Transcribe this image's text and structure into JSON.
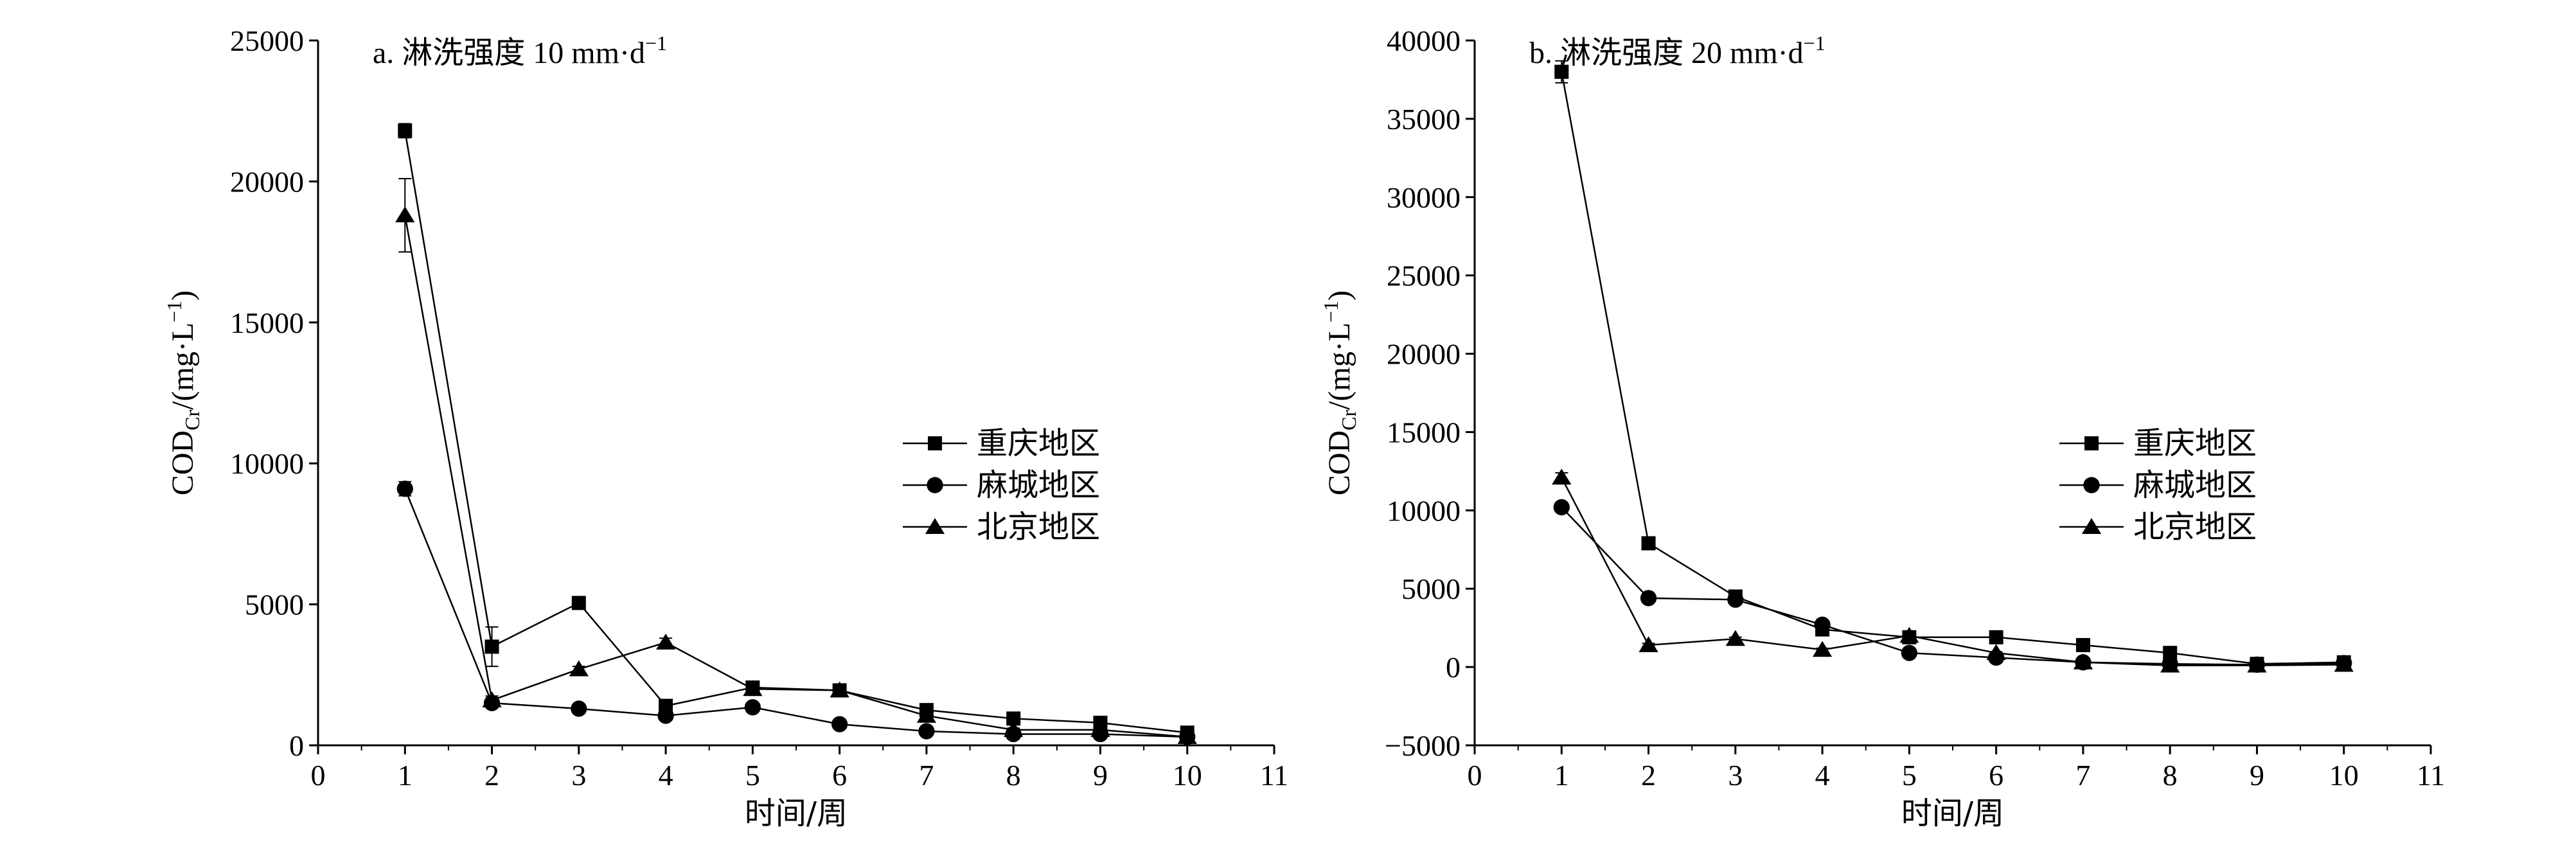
{
  "chart_data": [
    {
      "type": "line",
      "title": "a. 淋洗强度 10 mm·d",
      "title_sup": "−1",
      "xlabel": "时间/周",
      "ylabel_main": "COD",
      "ylabel_sub": "Cr",
      "ylabel_rest": "/(mg·L",
      "ylabel_sup": "−1",
      "ylabel_close": ")",
      "xlim": [
        0,
        11
      ],
      "ylim": [
        0,
        25000
      ],
      "xticks": [
        "0",
        "1",
        "2",
        "3",
        "4",
        "5",
        "6",
        "7",
        "8",
        "9",
        "10",
        "11"
      ],
      "yticks": [
        "0",
        "5000",
        "10000",
        "15000",
        "20000",
        "25000"
      ],
      "legend_position": "right-middle",
      "grid": false,
      "x": [
        1,
        2,
        3,
        4,
        5,
        6,
        7,
        8,
        9,
        10
      ],
      "series": [
        {
          "name": "重庆地区",
          "marker": "square",
          "values": [
            21800,
            3500,
            5050,
            1400,
            2050,
            1950,
            1250,
            950,
            800,
            450
          ],
          "errors": [
            250,
            700,
            150,
            150,
            100,
            100,
            100,
            80,
            80,
            50
          ]
        },
        {
          "name": "麻城地区",
          "marker": "circle",
          "values": [
            9100,
            1500,
            1300,
            1050,
            1350,
            750,
            500,
            400,
            400,
            300
          ],
          "errors": [
            250,
            100,
            80,
            80,
            80,
            60,
            50,
            50,
            50,
            40
          ]
        },
        {
          "name": "北京地区",
          "marker": "triangle",
          "values": [
            18800,
            1600,
            2700,
            3650,
            2000,
            1950,
            1050,
            550,
            550,
            300
          ],
          "errors": [
            1300,
            150,
            100,
            150,
            100,
            100,
            80,
            60,
            60,
            40
          ]
        }
      ]
    },
    {
      "type": "line",
      "title": "b. 淋洗强度 20 mm·d",
      "title_sup": "−1",
      "xlabel": "时间/周",
      "ylabel_main": "COD",
      "ylabel_sub": "Cr",
      "ylabel_rest": "/(mg·L",
      "ylabel_sup": "−1",
      "ylabel_close": ")",
      "xlim": [
        0,
        11
      ],
      "ylim": [
        -5000,
        40000
      ],
      "xticks": [
        "0",
        "1",
        "2",
        "3",
        "4",
        "5",
        "6",
        "7",
        "8",
        "9",
        "10",
        "11"
      ],
      "yticks": [
        "−5000",
        "0",
        "5000",
        "10000",
        "15000",
        "20000",
        "25000",
        "30000",
        "35000",
        "40000"
      ],
      "legend_position": "right-middle",
      "grid": false,
      "x": [
        1,
        2,
        3,
        4,
        5,
        6,
        7,
        8,
        9,
        10
      ],
      "series": [
        {
          "name": "重庆地区",
          "marker": "square",
          "values": [
            38000,
            7900,
            4500,
            2400,
            1900,
            1900,
            1400,
            900,
            200,
            300
          ],
          "errors": [
            700,
            200,
            150,
            150,
            100,
            100,
            100,
            80,
            60,
            60
          ]
        },
        {
          "name": "麻城地区",
          "marker": "circle",
          "values": [
            10200,
            4400,
            4300,
            2700,
            900,
            600,
            300,
            200,
            150,
            250
          ],
          "errors": [
            300,
            150,
            150,
            150,
            80,
            60,
            50,
            50,
            40,
            40
          ]
        },
        {
          "name": "北京地区",
          "marker": "triangle",
          "values": [
            12100,
            1400,
            1800,
            1100,
            2000,
            900,
            300,
            100,
            100,
            150
          ],
          "errors": [
            300,
            100,
            100,
            100,
            100,
            60,
            50,
            40,
            40,
            40
          ]
        }
      ]
    }
  ]
}
